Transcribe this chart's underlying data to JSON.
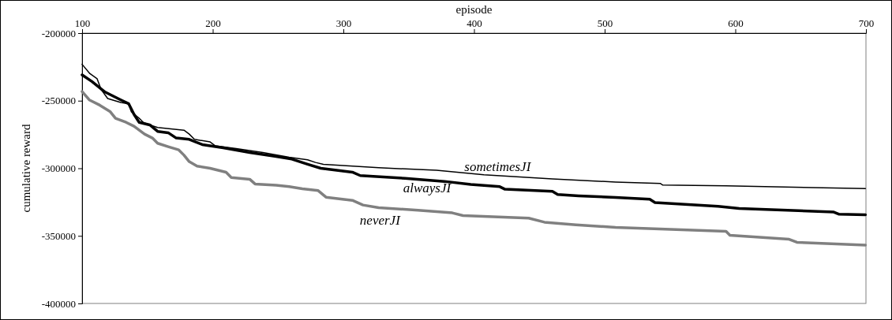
{
  "chart_data": {
    "type": "line",
    "xlabel": "episode",
    "ylabel": "cumulative reward",
    "xlim": [
      100,
      700
    ],
    "xticks": [
      100,
      200,
      300,
      400,
      500,
      600,
      700
    ],
    "ylim": [
      -400000,
      -200000
    ],
    "yticks": [
      -400000,
      -350000,
      -300000,
      -250000,
      -200000
    ],
    "grid": false,
    "series": [
      {
        "name": "sometimesJI",
        "color": "#000000",
        "x": [
          100,
          106,
          111.5,
          114.5,
          119.6,
          129.6,
          135.7,
          137.7,
          143.7,
          146.8,
          149.8,
          157.8,
          178,
          182,
          186,
          198,
          202,
          218,
          238.4,
          258.5,
          272.6,
          278.7,
          284.7,
          327,
          371.3,
          407.6,
          460,
          508.3,
          542.5,
          544.5,
          592.9,
          699.6
        ],
        "values": [
          -223100,
          -230000,
          -233800,
          -241600,
          -248400,
          -251300,
          -252300,
          -258200,
          -263000,
          -266000,
          -267300,
          -269800,
          -271800,
          -274700,
          -278600,
          -280500,
          -283400,
          -285400,
          -288300,
          -291800,
          -293700,
          -295700,
          -297100,
          -299600,
          -301500,
          -304800,
          -307800,
          -310200,
          -311200,
          -312400,
          -313000,
          -315000
        ]
      },
      {
        "name": "alwaysJI",
        "color": "#000000",
        "x": [
          100,
          107.5,
          117.6,
          129.6,
          135.7,
          139.7,
          143.7,
          151.8,
          157.8,
          165.9,
          172,
          182,
          192,
          208,
          228.3,
          248.5,
          260.5,
          272.6,
          282.7,
          306.9,
          312.9,
          347.2,
          377.4,
          397.5,
          419.7,
          423.7,
          460,
          464,
          480,
          508.3,
          534.5,
          538.5,
          586.8,
          603,
          675.4,
          679.5,
          699.6
        ],
        "values": [
          -230900,
          -235800,
          -243600,
          -249400,
          -252300,
          -260100,
          -266000,
          -267900,
          -272700,
          -273700,
          -277600,
          -278600,
          -282500,
          -284800,
          -288300,
          -291200,
          -293200,
          -297000,
          -300000,
          -302900,
          -305400,
          -307400,
          -309700,
          -312000,
          -313600,
          -315500,
          -317100,
          -319400,
          -320400,
          -321600,
          -322900,
          -325300,
          -328200,
          -329700,
          -332400,
          -334000,
          -334400
        ]
      },
      {
        "name": "neverJI",
        "color": "#808080",
        "x": [
          100,
          105.5,
          113.5,
          121.6,
          125.6,
          133.7,
          139.7,
          147.8,
          153.8,
          157.8,
          165.9,
          174,
          178,
          182,
          188,
          198,
          210.2,
          214.2,
          228.3,
          232.4,
          248.5,
          258.5,
          268.6,
          280.7,
          286.7,
          306.9,
          315,
          327,
          357.2,
          383.4,
          391.5,
          441.8,
          453.9,
          478,
          508.3,
          592.9,
          595.9,
          641.2,
          647.2,
          699.6
        ],
        "values": [
          -243200,
          -249400,
          -253300,
          -258200,
          -263000,
          -266000,
          -268900,
          -274700,
          -277600,
          -281500,
          -284000,
          -286400,
          -290300,
          -295100,
          -298400,
          -300000,
          -302900,
          -306800,
          -308100,
          -311600,
          -312600,
          -313600,
          -315100,
          -316500,
          -321400,
          -323700,
          -327200,
          -329100,
          -331100,
          -333000,
          -335000,
          -336900,
          -339900,
          -341800,
          -343700,
          -346600,
          -349600,
          -352500,
          -354800,
          -356800
        ]
      }
    ]
  }
}
